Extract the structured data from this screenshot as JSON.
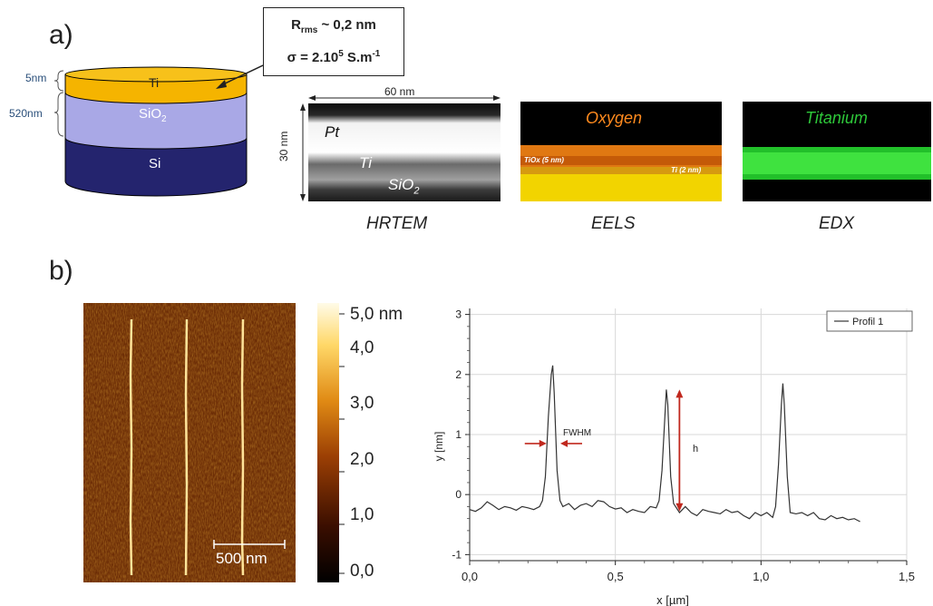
{
  "panel_a": {
    "label": "a)",
    "stack": {
      "layers": [
        {
          "name": "Ti",
          "thickness": "5nm",
          "color": "#f5b400"
        },
        {
          "name": "SiO",
          "sub": "2",
          "thickness": "520nm",
          "color": "#a9a8e6"
        },
        {
          "name": "Si",
          "color": "#24246e"
        }
      ]
    },
    "callout": {
      "rrms_prefix": "R",
      "rrms_sub": "rms",
      "rrms_value": " ~ 0,2 nm",
      "sigma_prefix": "σ = 2.10",
      "sigma_sup": "5",
      "sigma_unit": " S.m",
      "sigma_unit_sup": "-1"
    },
    "hrtem": {
      "width_label": "60 nm",
      "height_label": "30 nm",
      "labels": {
        "pt": "Pt",
        "ti": "Ti",
        "sio2": "SiO",
        "sio2_sub": "2"
      },
      "caption": "HRTEM"
    },
    "eels": {
      "title": "Oxygen",
      "label_tiox": "TiOx (5 nm)",
      "label_ti": "Ti (2 nm)",
      "caption": "EELS",
      "title_color": "#ff8a1e"
    },
    "edx": {
      "title": "Titanium",
      "caption": "EDX",
      "title_color": "#2ec83a"
    }
  },
  "panel_b": {
    "label": "b)",
    "afm": {
      "scalebar_label": "500 nm"
    },
    "colorbar": {
      "ticks": [
        "5,0 nm",
        "4,0",
        "3,0",
        "2,0",
        "1,0",
        "0,0"
      ]
    }
  },
  "chart_data": {
    "type": "line",
    "xlabel": "x [µm]",
    "ylabel": "y [nm]",
    "xlim": [
      0.0,
      1.5
    ],
    "ylim": [
      -1.1,
      3.1
    ],
    "xticks": [
      "0,0",
      "0,5",
      "1,0",
      "1,5"
    ],
    "yticks": [
      "-1",
      "0",
      "1",
      "2",
      "3"
    ],
    "grid": true,
    "legend_position": "top-right",
    "series": [
      {
        "name": "Profil 1",
        "x": [
          0.0,
          0.02,
          0.04,
          0.06,
          0.08,
          0.1,
          0.12,
          0.14,
          0.16,
          0.18,
          0.2,
          0.22,
          0.24,
          0.25,
          0.26,
          0.27,
          0.28,
          0.285,
          0.29,
          0.3,
          0.31,
          0.32,
          0.34,
          0.36,
          0.38,
          0.4,
          0.42,
          0.44,
          0.46,
          0.48,
          0.5,
          0.52,
          0.54,
          0.56,
          0.58,
          0.6,
          0.62,
          0.64,
          0.65,
          0.66,
          0.67,
          0.675,
          0.68,
          0.69,
          0.7,
          0.72,
          0.74,
          0.76,
          0.78,
          0.8,
          0.82,
          0.84,
          0.86,
          0.88,
          0.9,
          0.92,
          0.94,
          0.96,
          0.98,
          1.0,
          1.02,
          1.04,
          1.05,
          1.06,
          1.07,
          1.075,
          1.08,
          1.09,
          1.1,
          1.12,
          1.14,
          1.16,
          1.18,
          1.2,
          1.22,
          1.24,
          1.26,
          1.28,
          1.3,
          1.32,
          1.34
        ],
        "y": [
          -0.25,
          -0.28,
          -0.22,
          -0.12,
          -0.18,
          -0.25,
          -0.2,
          -0.22,
          -0.26,
          -0.2,
          -0.22,
          -0.25,
          -0.2,
          -0.1,
          0.3,
          1.3,
          2.0,
          2.15,
          1.7,
          0.4,
          -0.1,
          -0.2,
          -0.15,
          -0.25,
          -0.18,
          -0.15,
          -0.2,
          -0.1,
          -0.12,
          -0.2,
          -0.24,
          -0.22,
          -0.3,
          -0.25,
          -0.28,
          -0.3,
          -0.2,
          -0.22,
          -0.1,
          0.4,
          1.3,
          1.75,
          1.5,
          0.3,
          -0.15,
          -0.3,
          -0.2,
          -0.3,
          -0.35,
          -0.25,
          -0.28,
          -0.3,
          -0.32,
          -0.25,
          -0.3,
          -0.28,
          -0.35,
          -0.4,
          -0.3,
          -0.35,
          -0.3,
          -0.38,
          -0.2,
          0.5,
          1.5,
          1.85,
          1.5,
          0.3,
          -0.3,
          -0.32,
          -0.3,
          -0.35,
          -0.3,
          -0.4,
          -0.42,
          -0.35,
          -0.4,
          -0.38,
          -0.42,
          -0.4,
          -0.45
        ]
      }
    ],
    "annotations": [
      {
        "text": "FWHM",
        "at_x": 0.29,
        "at_y": 0.95
      },
      {
        "text": "h",
        "at_x": 0.74,
        "at_y": 0.75
      }
    ]
  }
}
